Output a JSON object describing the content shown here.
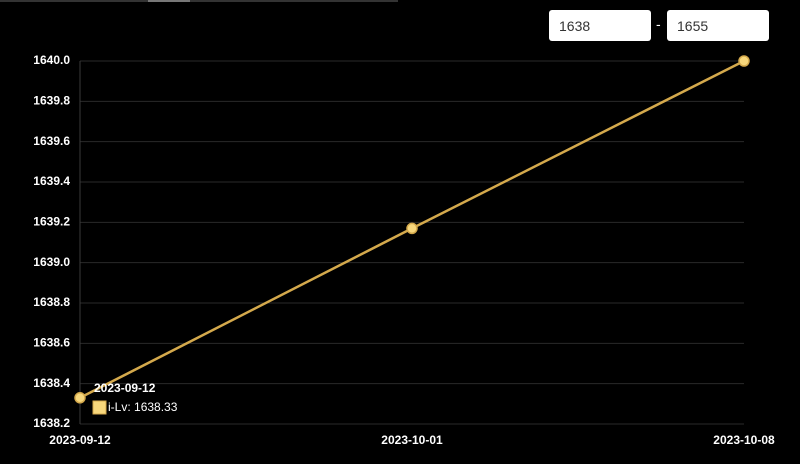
{
  "range_filter": {
    "min": "1638",
    "separator": "-",
    "max": "1655"
  },
  "chart_data": {
    "type": "line",
    "categories": [
      "2023-09-12",
      "2023-10-01",
      "2023-10-08"
    ],
    "series": [
      {
        "name": "i-Lv",
        "color": "#d4a94c",
        "values": [
          1638.33,
          1639.17,
          1640.0
        ]
      }
    ],
    "ylim": [
      1638.2,
      1640.0
    ],
    "yticks": [
      1638.2,
      1638.4,
      1638.6,
      1638.8,
      {
        "value": 1639,
        "label": "1639.0"
      },
      1639.2,
      1639.4,
      1639.6,
      1639.8,
      {
        "value": 1640,
        "label": "1640.0"
      }
    ],
    "grid": true,
    "tooltip": {
      "category_index": 0
    }
  }
}
